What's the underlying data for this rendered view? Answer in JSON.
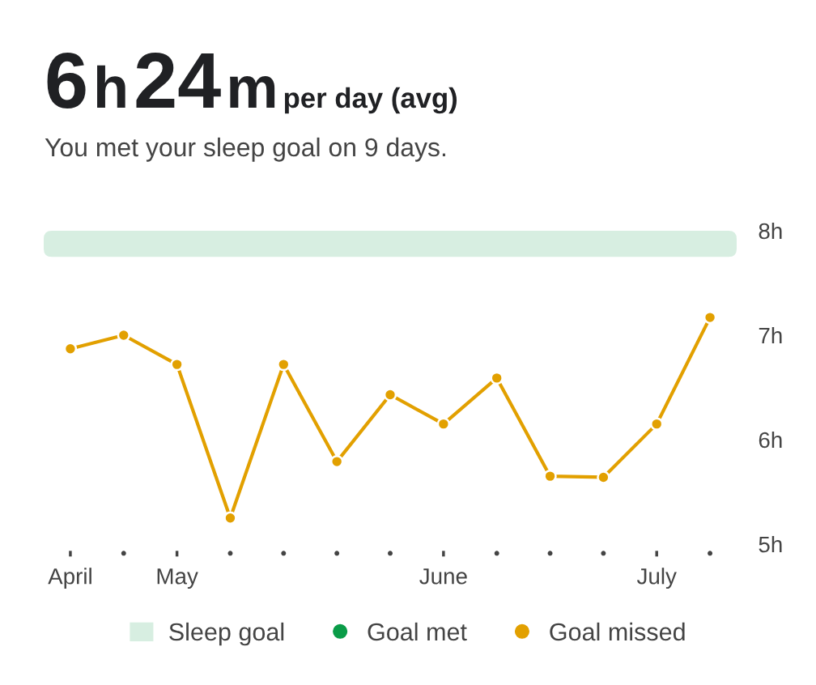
{
  "chart_data": {
    "type": "line",
    "title": "6h 24m per day (avg)",
    "subtitle": "You met your sleep goal on 9 days.",
    "categories": [
      "April",
      null,
      "May",
      null,
      null,
      null,
      null,
      "June",
      null,
      null,
      null,
      "July",
      null
    ],
    "series": [
      {
        "name": "Goal met",
        "type": "scatter",
        "color": "#0a9c48",
        "values": [
          null,
          null,
          null,
          null,
          null,
          null,
          null,
          null,
          null,
          null,
          null,
          null,
          null
        ]
      },
      {
        "name": "Goal missed",
        "color": "#e2a000",
        "values": [
          6.87,
          7.0,
          6.72,
          5.25,
          6.72,
          5.79,
          6.43,
          6.15,
          6.59,
          5.65,
          5.64,
          6.15,
          7.17
        ]
      }
    ],
    "ylim": [
      5,
      8
    ],
    "yticks": [
      {
        "value": 5,
        "label": "5h"
      },
      {
        "value": 6,
        "label": "6h"
      },
      {
        "value": 7,
        "label": "7h"
      },
      {
        "value": 8,
        "label": "8h"
      }
    ],
    "bands": [
      {
        "axis": "y",
        "from": 7.75,
        "to": 8,
        "label": "Sleep goal",
        "color": "#d7eee1"
      }
    ],
    "marker": "circle",
    "grid": false,
    "legend": "bottom"
  }
}
